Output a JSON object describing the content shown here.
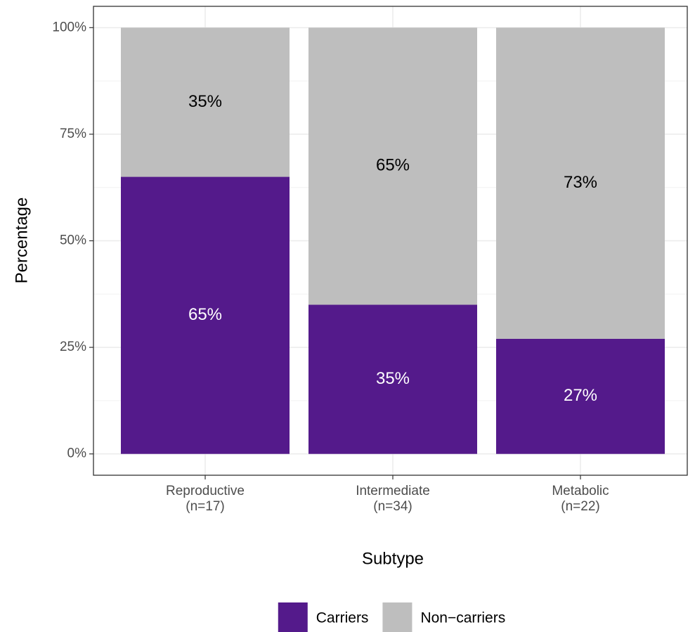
{
  "chart_data": {
    "type": "stacked_bar",
    "categories": [
      "Reproductive\n(n=17)",
      "Intermediate\n(n=34)",
      "Metabolic\n(n=22)"
    ],
    "series": [
      {
        "name": "Carriers",
        "color": "#541a8b",
        "label_color": "#ffffff",
        "values": [
          65,
          35,
          27
        ],
        "value_labels": [
          "65%",
          "35%",
          "27%"
        ]
      },
      {
        "name": "Non−carriers",
        "color": "#bebebe",
        "label_color": "#000000",
        "values": [
          35,
          65,
          73
        ],
        "value_labels": [
          "35%",
          "65%",
          "73%"
        ]
      }
    ],
    "x_label": "Subtype",
    "y_label": "Percentage",
    "ylim": [
      -5,
      105
    ],
    "yticks": [
      {
        "value": 0,
        "label": "0%"
      },
      {
        "value": 25,
        "label": "25%"
      },
      {
        "value": 50,
        "label": "50%"
      },
      {
        "value": 75,
        "label": "75%"
      },
      {
        "value": 100,
        "label": "100%"
      }
    ],
    "grid": true,
    "legend": "bottom"
  }
}
